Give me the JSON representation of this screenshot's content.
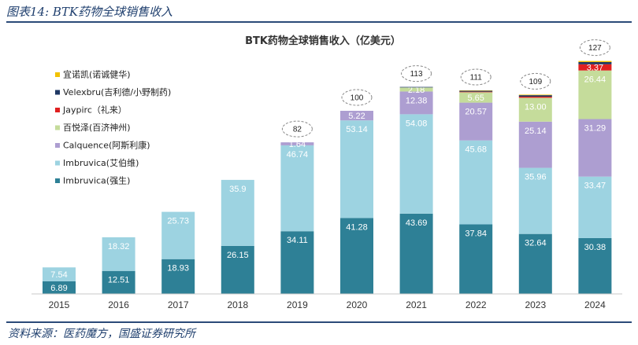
{
  "header": {
    "figure_caption": "图表14: BTK药物全球销售收入"
  },
  "footer": {
    "source": "资料来源：医药魔方，国盛证券研究所"
  },
  "chart_data": {
    "type": "bar",
    "stacked": true,
    "title": "BTK药物全球销售收入（亿美元）",
    "categories": [
      "2015",
      "2016",
      "2017",
      "2018",
      "2019",
      "2020",
      "2021",
      "2022",
      "2023",
      "2024"
    ],
    "series": [
      {
        "name": "Imbruvica(强生)",
        "color": "#2e8096",
        "label_color": "#ffffff",
        "values": [
          6.89,
          12.51,
          18.93,
          26.15,
          34.11,
          41.28,
          43.69,
          37.84,
          32.64,
          30.38
        ]
      },
      {
        "name": "Imbruvica(艾伯维)",
        "color": "#9dd3e1",
        "label_color": "#ffffff",
        "values": [
          7.54,
          18.32,
          25.73,
          35.9,
          46.74,
          53.14,
          54.08,
          45.68,
          35.96,
          33.47
        ]
      },
      {
        "name": "Calquence(阿斯利康)",
        "color": "#ad9ed1",
        "label_color": "#ffffff",
        "values": [
          null,
          null,
          null,
          null,
          1.64,
          5.22,
          12.38,
          20.57,
          25.14,
          31.29
        ]
      },
      {
        "name": "百悦泽(百济神州)",
        "color": "#c5dc9b",
        "label_color": "#ffffff",
        "values": [
          null,
          null,
          null,
          null,
          null,
          null,
          2.18,
          5.65,
          13.0,
          26.44
        ]
      },
      {
        "name": "Jaypirc（礼来）",
        "color": "#e02020",
        "label_color": "#ffffff",
        "values": [
          null,
          null,
          null,
          null,
          null,
          null,
          null,
          0.3,
          0.6,
          3.37
        ]
      },
      {
        "name": "Velexbru(吉利德/小野制药)",
        "color": "#1f3864",
        "label_color": "#ffffff",
        "values": [
          null,
          null,
          null,
          null,
          null,
          null,
          0.3,
          0.5,
          0.8,
          1.2
        ]
      },
      {
        "name": "宜诺凯(诺诚健华)",
        "color": "#f2c200",
        "label_color": "#ffffff",
        "values": [
          null,
          null,
          null,
          null,
          null,
          null,
          null,
          0.2,
          0.3,
          0.6
        ]
      }
    ],
    "value_labels": [
      [
        "6.89",
        "12.51",
        "18.93",
        "26.15",
        "34.11",
        "41.28",
        "43.69",
        "37.84",
        "32.64",
        "30.38"
      ],
      [
        "7.54",
        "18.32",
        "25.73",
        "35.9",
        "46.74",
        "53.14",
        "54.08",
        "45.68",
        "35.96",
        "33.47"
      ],
      [
        "",
        "",
        "",
        "",
        "1.64",
        "5.22",
        "12.38",
        "20.57",
        "25.14",
        "31.29"
      ],
      [
        "",
        "",
        "",
        "",
        "",
        "",
        "2.18",
        "5.65",
        "13.00",
        "26.44"
      ],
      [
        "",
        "",
        "",
        "",
        "",
        "",
        "",
        "",
        "",
        "3.37"
      ],
      [
        "",
        "",
        "",
        "",
        "",
        "",
        "",
        "",
        "",
        ""
      ],
      [
        "",
        "",
        "",
        "",
        "",
        "",
        "",
        "",
        "",
        ""
      ]
    ],
    "totals": [
      "",
      "",
      "",
      "",
      "82",
      "100",
      "113",
      "111",
      "109",
      "127"
    ],
    "legend_order": [
      "宜诺凯(诺诚健华)",
      "Velexbru(吉利德/小野制药)",
      "Jaypirc（礼来）",
      "百悦泽(百济神州)",
      "Calquence(阿斯利康)",
      "Imbruvica(艾伯维)",
      "Imbruvica(强生)"
    ],
    "legend_placement": "top-left",
    "ylim": [
      0,
      130
    ],
    "grid": false,
    "xlabel": "",
    "ylabel": ""
  }
}
